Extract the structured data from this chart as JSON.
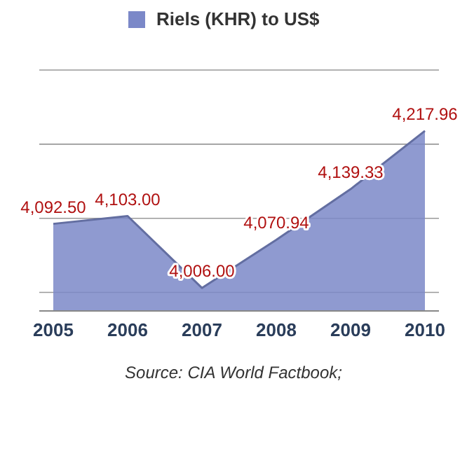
{
  "chart_data": {
    "type": "area",
    "categories": [
      "2005",
      "2006",
      "2007",
      "2008",
      "2009",
      "2010"
    ],
    "series": [
      {
        "name": "Riels (KHR) to US$",
        "color": "#7b88c8",
        "values": [
          4092.5,
          4103.0,
          4006.0,
          4070.94,
          4139.33,
          4217.96
        ],
        "value_labels": [
          "4,092.50",
          "4,103.00",
          "4,006.00",
          "4,070.94",
          "4,139.33",
          "4,217.96"
        ]
      }
    ],
    "ylim": [
      3975,
      4300
    ],
    "yticks": [
      {
        "value": 4000,
        "label": null
      },
      {
        "value": 4100,
        "label": null
      },
      {
        "value": 4200,
        "label": null
      },
      {
        "value": 4300,
        "label": null
      }
    ],
    "grid": "y",
    "tick_labels": "x",
    "legend": "top",
    "annotations": [
      "Source: CIA World Factbook;"
    ]
  }
}
